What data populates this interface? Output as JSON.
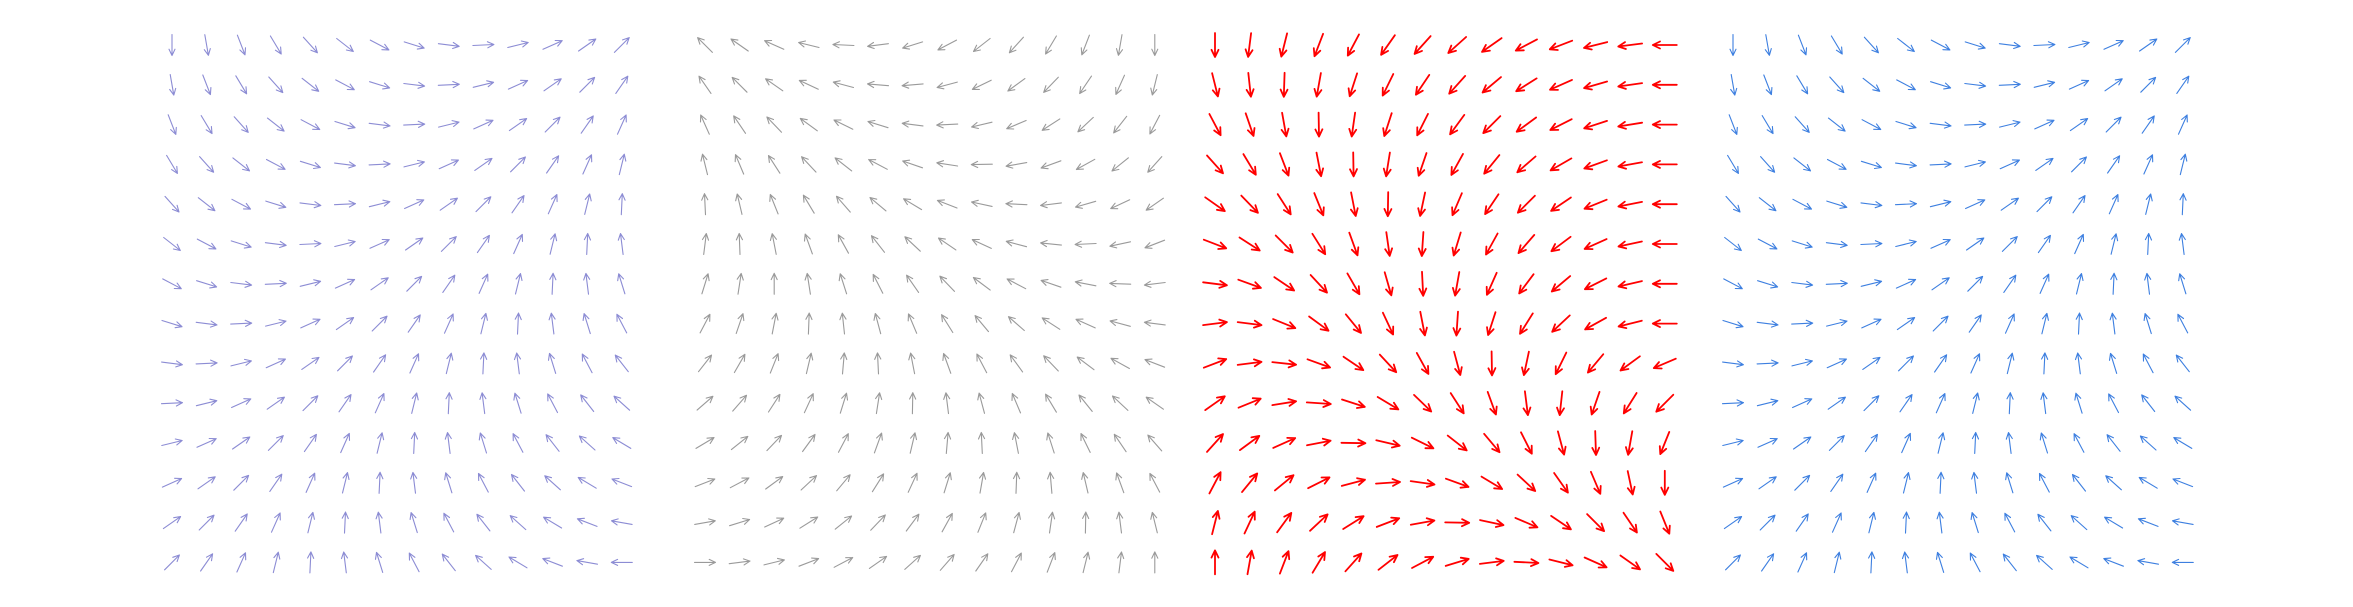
{
  "chart_data": [
    {
      "type": "quiver",
      "color": "#8c8cd4",
      "angles": [
        [
          -90,
          -80,
          -69,
          -59,
          -48,
          -38,
          -28,
          -17,
          -7,
          3,
          14,
          24,
          35,
          45
        ],
        [
          -80,
          -69,
          -59,
          -48,
          -38,
          -28,
          -17,
          -7,
          3,
          14,
          24,
          35,
          45,
          55
        ],
        [
          -69,
          -59,
          -48,
          -38,
          -28,
          -17,
          -7,
          3,
          14,
          24,
          35,
          45,
          55,
          66
        ],
        [
          -59,
          -48,
          -38,
          -28,
          -17,
          -7,
          3,
          14,
          24,
          35,
          45,
          55,
          66,
          76
        ],
        [
          -48,
          -38,
          -28,
          -17,
          -7,
          3,
          14,
          24,
          35,
          45,
          55,
          66,
          76,
          87
        ],
        [
          -38,
          -28,
          -17,
          -7,
          3,
          14,
          24,
          35,
          45,
          55,
          66,
          76,
          87,
          97
        ],
        [
          -28,
          -17,
          -7,
          3,
          14,
          24,
          35,
          45,
          55,
          66,
          76,
          87,
          97,
          107
        ],
        [
          -17,
          -7,
          3,
          14,
          24,
          35,
          45,
          55,
          66,
          76,
          87,
          97,
          107,
          118
        ],
        [
          -7,
          3,
          14,
          24,
          35,
          45,
          55,
          66,
          76,
          87,
          97,
          107,
          118,
          128
        ],
        [
          3,
          14,
          24,
          35,
          45,
          55,
          66,
          76,
          87,
          97,
          107,
          118,
          128,
          138
        ],
        [
          14,
          24,
          35,
          45,
          55,
          66,
          76,
          87,
          97,
          107,
          118,
          128,
          138,
          149
        ],
        [
          24,
          35,
          45,
          55,
          66,
          76,
          87,
          97,
          107,
          118,
          128,
          138,
          149,
          159
        ],
        [
          35,
          45,
          55,
          66,
          76,
          87,
          97,
          107,
          118,
          128,
          138,
          149,
          159,
          170
        ],
        [
          45,
          55,
          66,
          76,
          87,
          97,
          107,
          118,
          128,
          138,
          149,
          159,
          170,
          180
        ]
      ]
    },
    {
      "type": "quiver",
      "color": "#9a9a9a",
      "angles": [
        [
          135,
          145,
          156,
          166,
          177,
          187,
          197,
          208,
          218,
          228,
          239,
          249,
          260,
          270
        ],
        [
          125,
          135,
          145,
          155,
          165,
          175,
          185,
          195,
          206,
          216,
          226,
          236,
          246,
          256
        ],
        [
          114,
          124,
          134,
          144,
          154,
          163,
          173,
          183,
          193,
          203,
          213,
          223,
          232,
          242
        ],
        [
          104,
          113,
          123,
          133,
          142,
          152,
          161,
          171,
          181,
          190,
          200,
          209,
          219,
          228
        ],
        [
          93,
          103,
          112,
          121,
          131,
          140,
          149,
          159,
          168,
          177,
          187,
          196,
          205,
          215
        ],
        [
          83,
          92,
          101,
          110,
          119,
          128,
          137,
          146,
          155,
          165,
          174,
          183,
          192,
          201
        ],
        [
          73,
          81,
          90,
          99,
          108,
          117,
          125,
          134,
          143,
          152,
          161,
          169,
          178,
          187
        ],
        [
          62,
          71,
          79,
          88,
          96,
          105,
          113,
          122,
          130,
          139,
          147,
          156,
          165,
          173
        ],
        [
          52,
          60,
          68,
          77,
          85,
          93,
          101,
          110,
          118,
          126,
          134,
          143,
          151,
          159
        ],
        [
          41,
          49,
          57,
          65,
          73,
          81,
          89,
          97,
          105,
          113,
          121,
          129,
          137,
          145
        ],
        [
          31,
          39,
          46,
          54,
          62,
          70,
          77,
          85,
          93,
          101,
          108,
          116,
          124,
          131
        ],
        [
          21,
          28,
          36,
          43,
          50,
          58,
          65,
          73,
          80,
          88,
          95,
          103,
          110,
          118
        ],
        [
          10,
          17,
          25,
          32,
          39,
          46,
          53,
          61,
          68,
          75,
          82,
          89,
          97,
          104
        ],
        [
          0,
          7,
          14,
          21,
          28,
          35,
          42,
          49,
          55,
          62,
          69,
          76,
          83,
          90
        ]
      ]
    },
    {
      "type": "quiver",
      "color": "#ff0000",
      "angles": [
        [
          -90,
          -97,
          -104,
          -111,
          -118,
          -125,
          -132,
          -138,
          -145,
          -152,
          -159,
          -166,
          -173,
          -180
        ],
        [
          -76,
          -84,
          -92,
          -100,
          -108,
          -116,
          -124,
          -132,
          -140,
          -148,
          -156,
          -164,
          -172,
          -180
        ],
        [
          -62,
          -71,
          -80,
          -89,
          -98,
          -108,
          -117,
          -126,
          -135,
          -144,
          -153,
          -162,
          -171,
          -180
        ],
        [
          -48,
          -59,
          -69,
          -79,
          -89,
          -99,
          -109,
          -119,
          -129,
          -139,
          -150,
          -160,
          -170,
          -180
        ],
        [
          -35,
          -46,
          -57,
          -68,
          -79,
          -91,
          -102,
          -113,
          -124,
          -135,
          -146,
          -158,
          -169,
          -180
        ],
        [
          -21,
          -33,
          -45,
          -58,
          -70,
          -82,
          -94,
          -107,
          -119,
          -131,
          -143,
          -156,
          -168,
          -180
        ],
        [
          -7,
          -20,
          -34,
          -47,
          -60,
          -74,
          -87,
          -100,
          -114,
          -127,
          -140,
          -153,
          -167,
          -180
        ],
        [
          7,
          -7,
          -22,
          -36,
          -51,
          -65,
          -79,
          -94,
          -108,
          -122,
          -137,
          -151,
          -166,
          -180
        ],
        [
          21,
          7,
          -6,
          -20,
          -34,
          -47,
          -61,
          -75,
          -89,
          -102,
          -116,
          -130,
          -144,
          -157
        ],
        [
          35,
          22,
          9,
          -4,
          -18,
          -31,
          -44,
          -57,
          -70,
          -83,
          -96,
          -109,
          -122,
          -135
        ],
        [
          48,
          36,
          24,
          11,
          -1,
          -13,
          -26,
          -38,
          -50,
          -63,
          -75,
          -88,
          -100,
          -112
        ],
        [
          62,
          51,
          39,
          27,
          15,
          4,
          -8,
          -20,
          -31,
          -43,
          -55,
          -67,
          -78,
          -90
        ],
        [
          76,
          65,
          54,
          43,
          32,
          21,
          10,
          -1,
          -12,
          -23,
          -34,
          -45,
          -56,
          -68
        ],
        [
          90,
          80,
          69,
          59,
          48,
          38,
          28,
          17,
          7,
          -3,
          -14,
          -24,
          -35,
          -45
        ]
      ]
    },
    {
      "type": "quiver",
      "color": "#3d7fe0",
      "angles": [
        [
          -90,
          -80,
          -69,
          -59,
          -48,
          -38,
          -28,
          -17,
          -7,
          3,
          14,
          24,
          35,
          45
        ],
        [
          -80,
          -69,
          -59,
          -48,
          -38,
          -28,
          -17,
          -7,
          3,
          14,
          24,
          35,
          45,
          55
        ],
        [
          -69,
          -59,
          -48,
          -38,
          -28,
          -17,
          -7,
          3,
          14,
          24,
          35,
          45,
          55,
          66
        ],
        [
          -59,
          -48,
          -38,
          -28,
          -17,
          -7,
          3,
          14,
          24,
          35,
          45,
          55,
          66,
          76
        ],
        [
          -48,
          -38,
          -28,
          -17,
          -7,
          3,
          14,
          24,
          35,
          45,
          55,
          66,
          76,
          87
        ],
        [
          -38,
          -28,
          -17,
          -7,
          3,
          14,
          24,
          35,
          45,
          55,
          66,
          76,
          87,
          97
        ],
        [
          -28,
          -17,
          -7,
          3,
          14,
          24,
          35,
          45,
          55,
          66,
          76,
          87,
          97,
          107
        ],
        [
          -17,
          -7,
          3,
          14,
          24,
          35,
          45,
          55,
          66,
          76,
          87,
          97,
          107,
          118
        ],
        [
          -7,
          3,
          14,
          24,
          35,
          45,
          55,
          66,
          76,
          87,
          97,
          107,
          118,
          128
        ],
        [
          3,
          14,
          24,
          35,
          45,
          55,
          66,
          76,
          87,
          97,
          107,
          118,
          128,
          138
        ],
        [
          14,
          24,
          35,
          45,
          55,
          66,
          76,
          87,
          97,
          107,
          118,
          128,
          138,
          149
        ],
        [
          24,
          35,
          45,
          55,
          66,
          76,
          87,
          97,
          107,
          118,
          128,
          138,
          149,
          159
        ],
        [
          35,
          45,
          55,
          66,
          76,
          87,
          97,
          107,
          118,
          128,
          138,
          149,
          159,
          170
        ],
        [
          45,
          55,
          66,
          76,
          87,
          97,
          107,
          118,
          128,
          138,
          149,
          159,
          170,
          180
        ]
      ]
    }
  ]
}
